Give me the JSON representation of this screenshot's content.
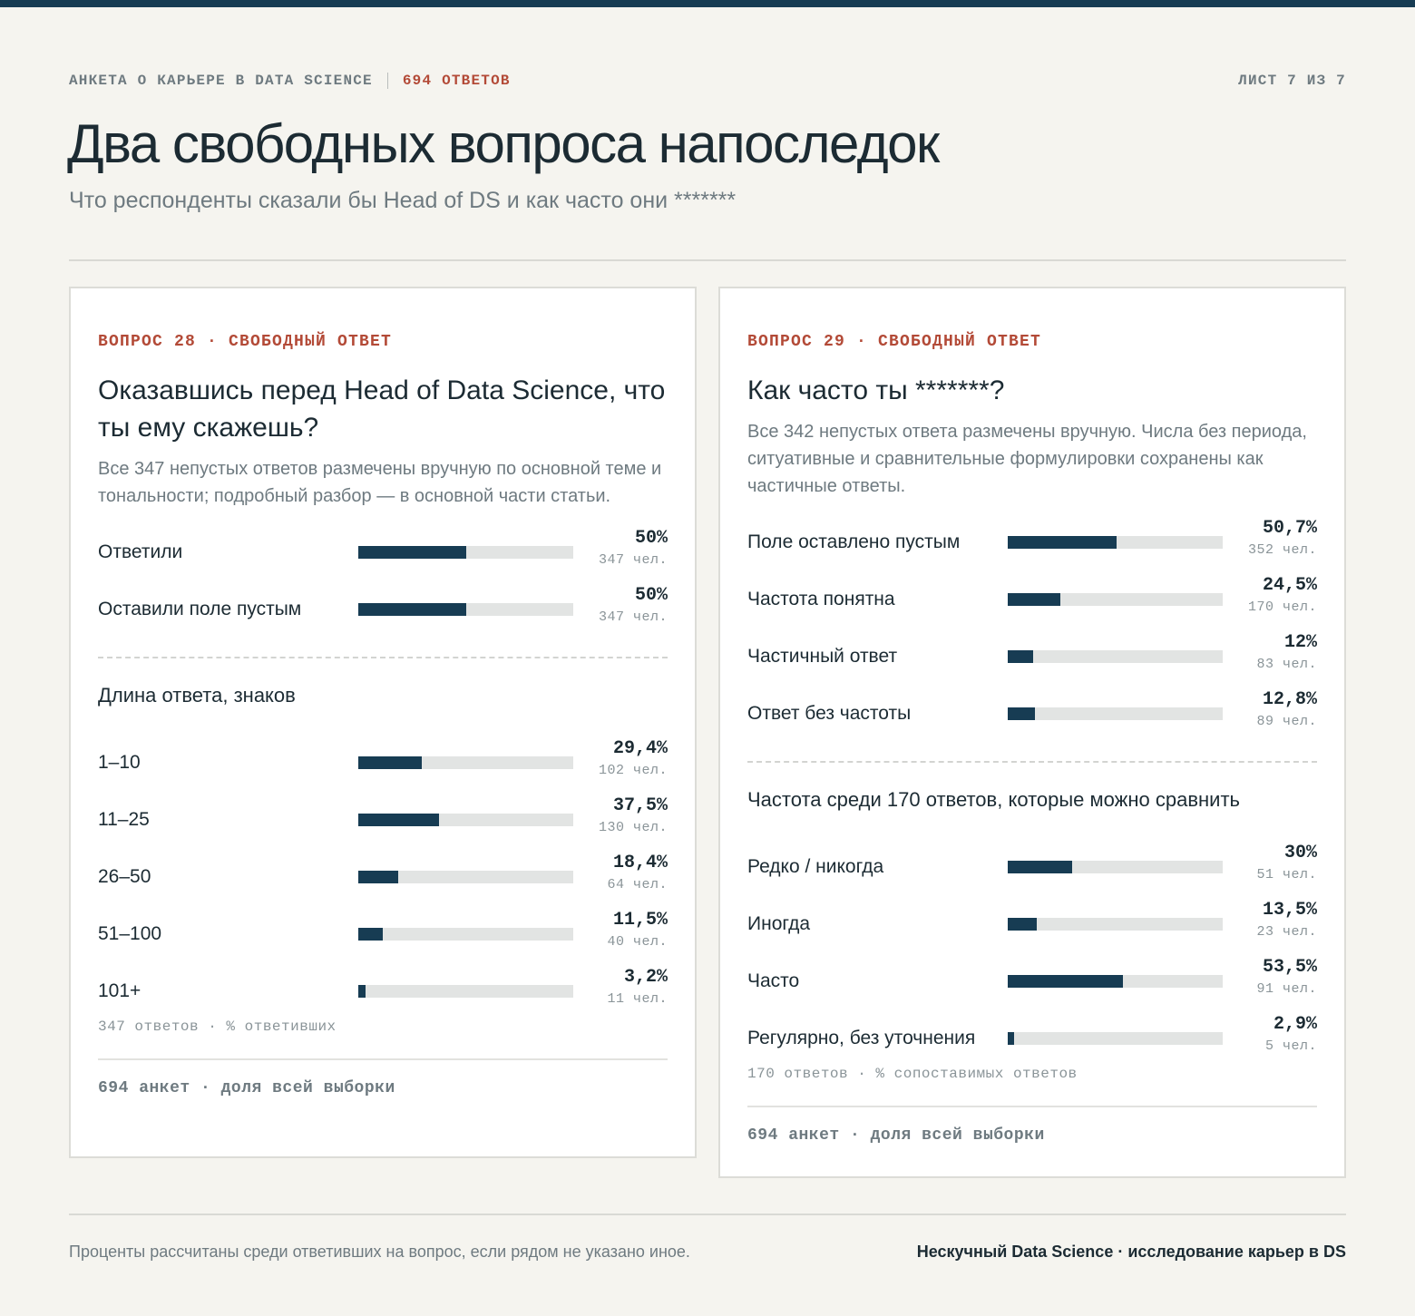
{
  "header": {
    "survey": "АНКЕТА О КАРЬЕРЕ В DATA SCIENCE",
    "responses": "694 ОТВЕТОВ",
    "sheet": "ЛИСТ 7 ИЗ 7",
    "title": "Два свободных вопроса напоследок",
    "subtitle": "Что респонденты сказали бы Head of DS и как часто они *******"
  },
  "colors": {
    "accent": "#b34a37",
    "bar": "#173c53",
    "track": "#e2e4e3"
  },
  "q28": {
    "tag": "ВОПРОС 28 · СВОБОДНЫЙ ОТВЕТ",
    "title": "Оказавшись перед Head of Data Science, что ты ему скажешь?",
    "note": "Все 347 непустых ответов размечены вручную по основной теме и тональности; подробный разбор — в основной части статьи.",
    "section_label": "Длина ответа, знаков",
    "foot_note": "347 ответов · % ответивших",
    "card_foot": "694 анкет · доля всей выборки"
  },
  "q29": {
    "tag": "ВОПРОС 29 · СВОБОДНЫЙ ОТВЕТ",
    "title": "Как часто ты *******?",
    "note": "Все 342 непустых ответа размечены вручную. Числа без периода, ситуативные и сравнительные формулировки сохранены как частичные ответы.",
    "section_label": "Частота среди 170 ответов, которые можно сравнить",
    "foot_note": "170 ответов · % сопоставимых ответов",
    "card_foot": "694 анкет · доля всей выборки"
  },
  "footer": {
    "note": "Проценты рассчитаны среди ответивших на вопрос, если рядом не указано иное.",
    "source": "Нескучный Data Science · исследование карьер в DS"
  },
  "chart_data": [
    {
      "type": "bar",
      "categories": [
        "Ответили",
        "Оставили поле пустым"
      ],
      "values": [
        50,
        50
      ],
      "value_labels": [
        "50%",
        "50%"
      ],
      "counts": [
        "347 чел.",
        "347 чел."
      ],
      "ylim": [
        0,
        100
      ]
    },
    {
      "type": "bar",
      "title": "Длина ответа, знаков",
      "categories": [
        "1–10",
        "11–25",
        "26–50",
        "51–100",
        "101+"
      ],
      "values": [
        29.4,
        37.5,
        18.4,
        11.5,
        3.2
      ],
      "value_labels": [
        "29,4%",
        "37,5%",
        "18,4%",
        "11,5%",
        "3,2%"
      ],
      "counts": [
        "102 чел.",
        "130 чел.",
        "64 чел.",
        "40 чел.",
        "11 чел."
      ],
      "ylim": [
        0,
        100
      ]
    },
    {
      "type": "bar",
      "categories": [
        "Поле оставлено пустым",
        "Частота понятна",
        "Частичный ответ",
        "Ответ без частоты"
      ],
      "values": [
        50.7,
        24.5,
        12,
        12.8
      ],
      "value_labels": [
        "50,7%",
        "24,5%",
        "12%",
        "12,8%"
      ],
      "counts": [
        "352 чел.",
        "170 чел.",
        "83 чел.",
        "89 чел."
      ],
      "ylim": [
        0,
        100
      ]
    },
    {
      "type": "bar",
      "title": "Частота среди 170 ответов, которые можно сравнить",
      "categories": [
        "Редко / никогда",
        "Иногда",
        "Часто",
        "Регулярно, без уточнения"
      ],
      "values": [
        30,
        13.5,
        53.5,
        2.9
      ],
      "value_labels": [
        "30%",
        "13,5%",
        "53,5%",
        "2,9%"
      ],
      "counts": [
        "51 чел.",
        "23 чел.",
        "91 чел.",
        "5 чел."
      ],
      "ylim": [
        0,
        100
      ]
    }
  ]
}
